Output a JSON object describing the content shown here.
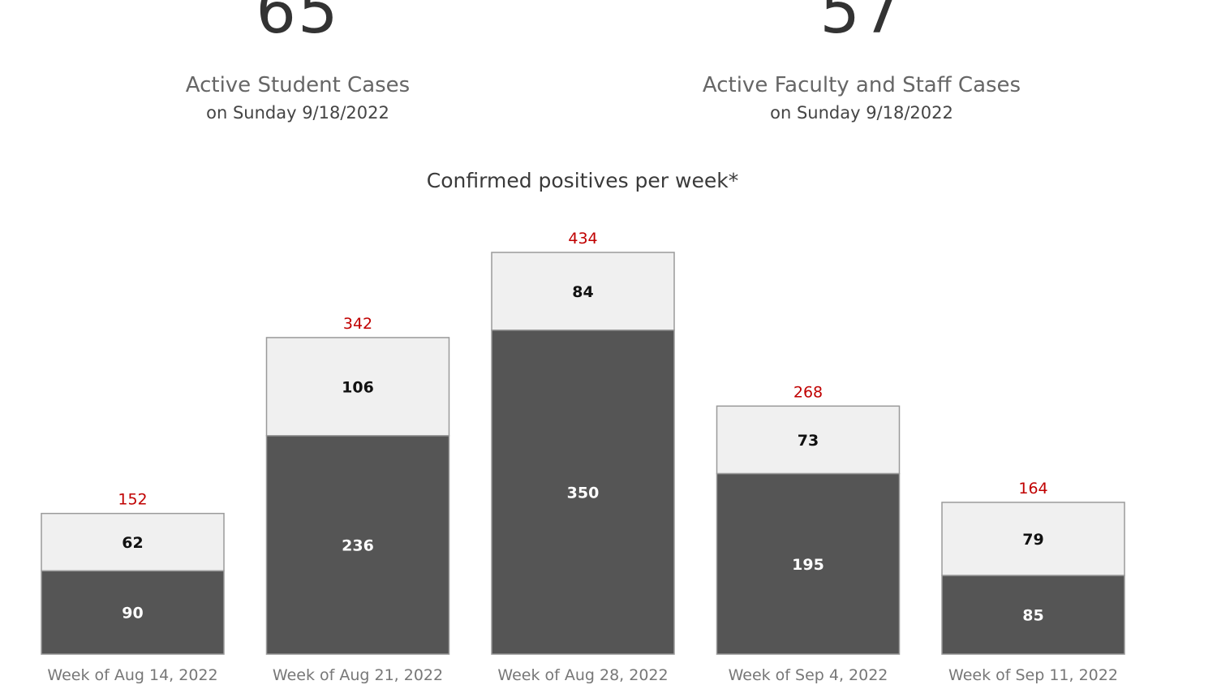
{
  "kpis": {
    "student": {
      "value": "65",
      "label": "Active Student Cases",
      "sublabel": "on Sunday 9/18/2022"
    },
    "staff": {
      "value": "57",
      "label": "Active Faculty and Staff Cases",
      "sublabel": "on Sunday 9/18/2022"
    }
  },
  "colors": {
    "students": "#555555",
    "faculty_staff": "#f0f0f0",
    "bar_outline": "#9a9a9a",
    "total_label": "#c00000"
  },
  "chart_data": {
    "type": "bar",
    "stacked": true,
    "title": "Confirmed positives per week*",
    "categories": [
      "Week of Aug 14, 2022",
      "Week of Aug 21, 2022",
      "Week of Aug 28, 2022",
      "Week of Sep 4, 2022",
      "Week of Sep 11, 2022"
    ],
    "series": [
      {
        "values": [
          90,
          236,
          350,
          195,
          85
        ],
        "color": "#555555"
      },
      {
        "values": [
          62,
          106,
          84,
          73,
          79
        ],
        "color": "#f0f0f0"
      }
    ],
    "totals": [
      152,
      342,
      434,
      268,
      164
    ],
    "xlabel": "",
    "ylabel": "",
    "ylim": [
      0,
      434
    ],
    "grid": false,
    "legend": "none"
  }
}
